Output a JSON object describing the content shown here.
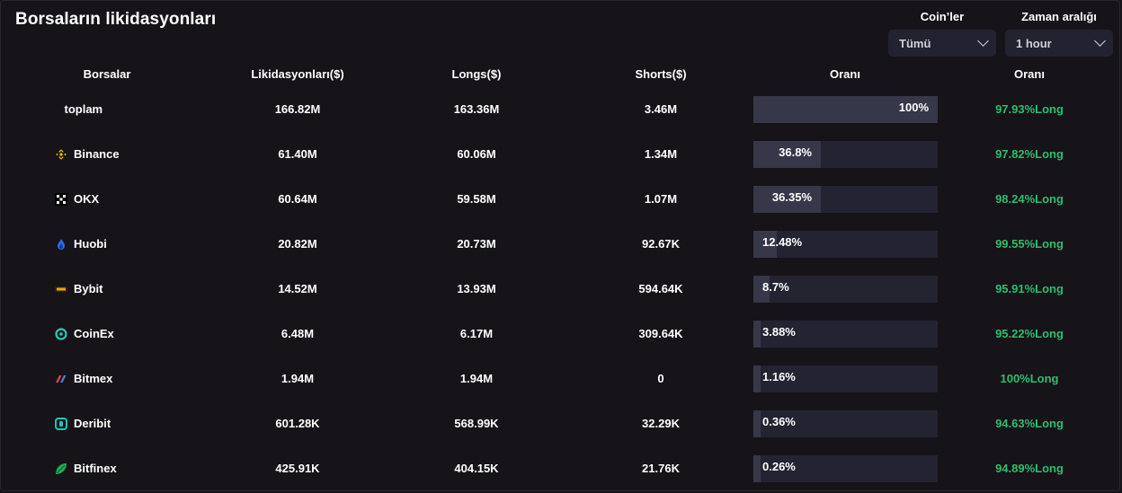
{
  "title": "Borsaların likidasyonları",
  "filters": {
    "coin": {
      "label": "Coin’ler",
      "value": "Tümü"
    },
    "time": {
      "label": "Zaman aralığı",
      "value": "1 hour"
    }
  },
  "columns": [
    "Borsalar",
    "Likidasyonları($)",
    "Longs($)",
    "Shorts($)",
    "Oranı",
    "Oranı"
  ],
  "colors": {
    "accent_green": "#2dbd6e",
    "bar_bg": "#242332",
    "bar_fill": "#363748"
  },
  "rows": [
    {
      "exchange": "toplam",
      "icon": "",
      "liquidations": "166.82M",
      "longs": "163.36M",
      "shorts": "3.46M",
      "share": 100,
      "share_label": "100%",
      "ratio": "97.93%Long"
    },
    {
      "exchange": "Binance",
      "icon": "binance-icon",
      "liquidations": "61.40M",
      "longs": "60.06M",
      "shorts": "1.34M",
      "share": 36.8,
      "share_label": "36.8%",
      "ratio": "97.82%Long"
    },
    {
      "exchange": "OKX",
      "icon": "okx-icon",
      "liquidations": "60.64M",
      "longs": "59.58M",
      "shorts": "1.07M",
      "share": 36.35,
      "share_label": "36.35%",
      "ratio": "98.24%Long"
    },
    {
      "exchange": "Huobi",
      "icon": "huobi-icon",
      "liquidations": "20.82M",
      "longs": "20.73M",
      "shorts": "92.67K",
      "share": 12.48,
      "share_label": "12.48%",
      "ratio": "99.55%Long"
    },
    {
      "exchange": "Bybit",
      "icon": "bybit-icon",
      "liquidations": "14.52M",
      "longs": "13.93M",
      "shorts": "594.64K",
      "share": 8.7,
      "share_label": "8.7%",
      "ratio": "95.91%Long"
    },
    {
      "exchange": "CoinEx",
      "icon": "coinex-icon",
      "liquidations": "6.48M",
      "longs": "6.17M",
      "shorts": "309.64K",
      "share": 3.88,
      "share_label": "3.88%",
      "ratio": "95.22%Long"
    },
    {
      "exchange": "Bitmex",
      "icon": "bitmex-icon",
      "liquidations": "1.94M",
      "longs": "1.94M",
      "shorts": "0",
      "share": 1.16,
      "share_label": "1.16%",
      "ratio": "100%Long"
    },
    {
      "exchange": "Deribit",
      "icon": "deribit-icon",
      "liquidations": "601.28K",
      "longs": "568.99K",
      "shorts": "32.29K",
      "share": 0.36,
      "share_label": "0.36%",
      "ratio": "94.63%Long"
    },
    {
      "exchange": "Bitfinex",
      "icon": "bitfinex-icon",
      "liquidations": "425.91K",
      "longs": "404.15K",
      "shorts": "21.76K",
      "share": 0.26,
      "share_label": "0.26%",
      "ratio": "94.89%Long"
    }
  ]
}
